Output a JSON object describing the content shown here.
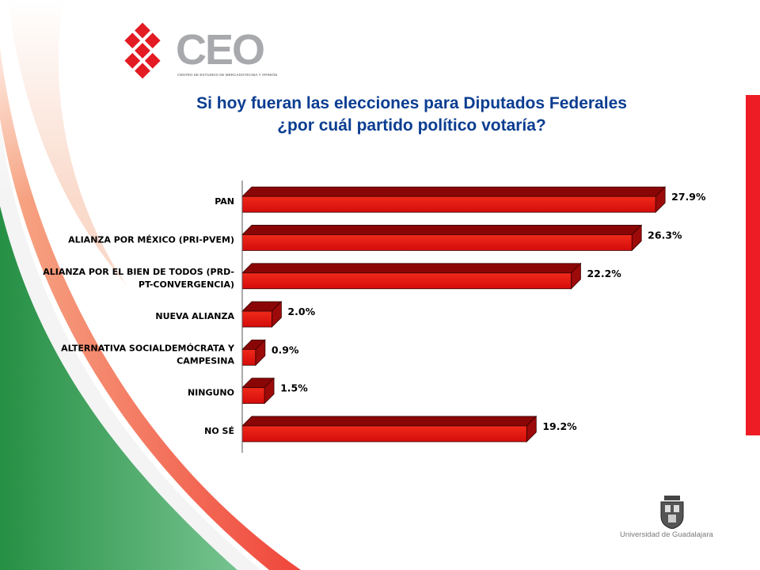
{
  "logo": {
    "brand": "CEO",
    "subtitle": "CENTRO DE ESTUDIOS DE MERCADOTECNIA Y OPINIÓN",
    "icon": "diamond-grid-logo-icon",
    "color_red": "#e31b23",
    "color_gray": "#a7a9ac"
  },
  "title": {
    "line1": "Si hoy fueran las elecciones para Diputados Federales",
    "line2": "¿por cuál partido político votaría?",
    "color": "#0b3d91"
  },
  "chart_data": {
    "type": "bar",
    "orientation": "horizontal",
    "style": "3d",
    "categories": [
      [
        "PAN"
      ],
      [
        "ALIANZA POR MÉXICO (PRI-PVEM)"
      ],
      [
        "ALIANZA POR EL BIEN DE TODOS (PRD-",
        "PT-CONVERGENCIA)"
      ],
      [
        "NUEVA ALIANZA"
      ],
      [
        "ALTERNATIVA SOCIALDEMÓCRATA Y",
        "CAMPESINA"
      ],
      [
        "NINGUNO"
      ],
      [
        "NO SÉ"
      ]
    ],
    "values": [
      27.9,
      26.3,
      22.2,
      2.0,
      0.9,
      1.5,
      19.2
    ],
    "value_labels": [
      "27.9%",
      "26.3%",
      "22.2%",
      "2.0%",
      "0.9%",
      "1.5%",
      "19.2%"
    ],
    "xlim": [
      0,
      28.5
    ],
    "grid": false,
    "legend": "none",
    "bar_color": "#e01010"
  },
  "footer": {
    "university": "Universidad de Guadalajara",
    "icon": "university-crest-icon"
  },
  "decor": {
    "swoosh_green": "#1a8a3a",
    "swoosh_red": "#ee3124",
    "accent_bar": "#ee1c25"
  }
}
